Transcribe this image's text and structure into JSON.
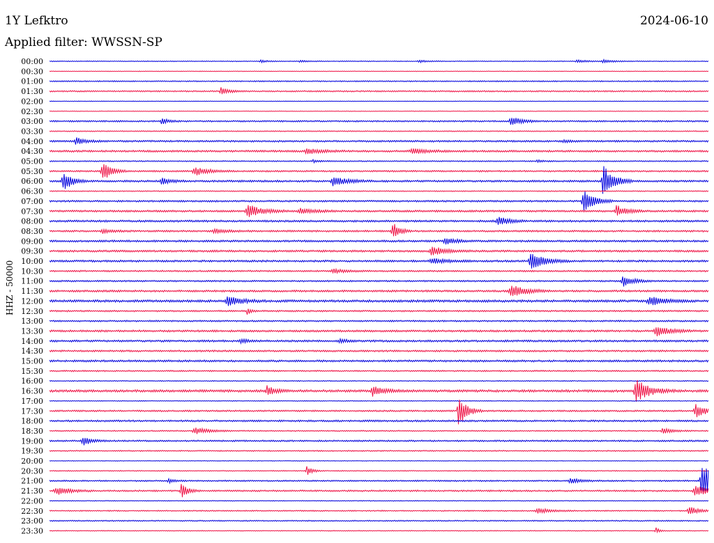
{
  "header": {
    "station": "1Y Lefktro",
    "date": "2024-06-10",
    "filter": "Applied filter: WWSSN-SP"
  },
  "chart_data": {
    "type": "line",
    "title": "1Y Lefktro",
    "date": "2024-06-10",
    "filter": "WWSSN-SP",
    "ylabel": "HHZ - 50000",
    "rows": [
      "00:00",
      "00:30",
      "01:00",
      "01:30",
      "02:00",
      "02:30",
      "03:00",
      "03:30",
      "04:00",
      "04:30",
      "05:00",
      "05:30",
      "06:00",
      "06:30",
      "07:00",
      "07:30",
      "08:00",
      "08:30",
      "09:00",
      "09:30",
      "10:00",
      "10:30",
      "11:00",
      "11:30",
      "12:00",
      "12:30",
      "13:00",
      "13:30",
      "14:00",
      "14:30",
      "15:00",
      "15:30",
      "16:00",
      "16:30",
      "17:00",
      "17:30",
      "18:00",
      "18:30",
      "19:00",
      "19:30",
      "20:00",
      "20:30",
      "21:00",
      "21:30",
      "22:00",
      "22:30",
      "23:00",
      "23:30"
    ],
    "colors": [
      "#0000dd",
      "#ee1144"
    ],
    "noise": [
      0.4,
      0.3,
      0.6,
      0.7,
      0.3,
      0.3,
      0.8,
      0.5,
      0.9,
      1.0,
      0.6,
      0.8,
      1.0,
      0.5,
      0.9,
      1.0,
      1.0,
      0.9,
      1.0,
      1.0,
      1.0,
      0.8,
      0.8,
      1.0,
      1.2,
      0.8,
      0.8,
      1.0,
      1.0,
      0.9,
      1.0,
      0.7,
      0.5,
      1.2,
      0.4,
      0.8,
      0.9,
      0.6,
      0.8,
      0.6,
      0.3,
      0.5,
      0.7,
      0.8,
      0.4,
      0.6,
      0.6,
      0.4
    ],
    "events": [
      {
        "row": 0,
        "t": 0.32,
        "a": 2,
        "w": 0.01
      },
      {
        "row": 0,
        "t": 0.38,
        "a": 2,
        "w": 0.01
      },
      {
        "row": 0,
        "t": 0.56,
        "a": 2,
        "w": 0.012
      },
      {
        "row": 0,
        "t": 0.8,
        "a": 2,
        "w": 0.015
      },
      {
        "row": 0,
        "t": 0.84,
        "a": 2.5,
        "w": 0.015
      },
      {
        "row": 3,
        "t": 0.26,
        "a": 5,
        "w": 0.012
      },
      {
        "row": 6,
        "t": 0.17,
        "a": 4,
        "w": 0.01
      },
      {
        "row": 6,
        "t": 0.7,
        "a": 7,
        "w": 0.015
      },
      {
        "row": 8,
        "t": 0.04,
        "a": 5,
        "w": 0.015
      },
      {
        "row": 8,
        "t": 0.78,
        "a": 2,
        "w": 0.01
      },
      {
        "row": 9,
        "t": 0.39,
        "a": 4,
        "w": 0.02
      },
      {
        "row": 9,
        "t": 0.55,
        "a": 4,
        "w": 0.02
      },
      {
        "row": 10,
        "t": 0.4,
        "a": 2,
        "w": 0.01
      },
      {
        "row": 10,
        "t": 0.74,
        "a": 2,
        "w": 0.01
      },
      {
        "row": 11,
        "t": 0.08,
        "a": 16,
        "w": 0.012
      },
      {
        "row": 11,
        "t": 0.22,
        "a": 6,
        "w": 0.02
      },
      {
        "row": 12,
        "t": 0.02,
        "a": 16,
        "w": 0.012
      },
      {
        "row": 12,
        "t": 0.17,
        "a": 5,
        "w": 0.012
      },
      {
        "row": 12,
        "t": 0.43,
        "a": 7,
        "w": 0.02
      },
      {
        "row": 12,
        "t": 0.84,
        "a": 24,
        "w": 0.015
      },
      {
        "row": 14,
        "t": 0.81,
        "a": 18,
        "w": 0.015
      },
      {
        "row": 15,
        "t": 0.3,
        "a": 10,
        "w": 0.02
      },
      {
        "row": 15,
        "t": 0.38,
        "a": 4,
        "w": 0.02
      },
      {
        "row": 15,
        "t": 0.86,
        "a": 8,
        "w": 0.015
      },
      {
        "row": 16,
        "t": 0.68,
        "a": 7,
        "w": 0.015
      },
      {
        "row": 17,
        "t": 0.08,
        "a": 3,
        "w": 0.015
      },
      {
        "row": 17,
        "t": 0.25,
        "a": 3,
        "w": 0.02
      },
      {
        "row": 17,
        "t": 0.52,
        "a": 14,
        "w": 0.01
      },
      {
        "row": 18,
        "t": 0.6,
        "a": 5,
        "w": 0.015
      },
      {
        "row": 19,
        "t": 0.58,
        "a": 7,
        "w": 0.02
      },
      {
        "row": 20,
        "t": 0.58,
        "a": 4,
        "w": 0.02
      },
      {
        "row": 20,
        "t": 0.73,
        "a": 12,
        "w": 0.02
      },
      {
        "row": 21,
        "t": 0.43,
        "a": 3,
        "w": 0.02
      },
      {
        "row": 22,
        "t": 0.87,
        "a": 8,
        "w": 0.015
      },
      {
        "row": 23,
        "t": 0.7,
        "a": 10,
        "w": 0.02
      },
      {
        "row": 24,
        "t": 0.27,
        "a": 7,
        "w": 0.02
      },
      {
        "row": 24,
        "t": 0.91,
        "a": 7,
        "w": 0.02
      },
      {
        "row": 25,
        "t": 0.3,
        "a": 6,
        "w": 0.005
      },
      {
        "row": 27,
        "t": 0.92,
        "a": 8,
        "w": 0.02
      },
      {
        "row": 28,
        "t": 0.29,
        "a": 3,
        "w": 0.01
      },
      {
        "row": 28,
        "t": 0.44,
        "a": 3,
        "w": 0.01
      },
      {
        "row": 33,
        "t": 0.33,
        "a": 7,
        "w": 0.012
      },
      {
        "row": 33,
        "t": 0.49,
        "a": 8,
        "w": 0.015
      },
      {
        "row": 33,
        "t": 0.89,
        "a": 16,
        "w": 0.02
      },
      {
        "row": 35,
        "t": 0.62,
        "a": 24,
        "w": 0.012
      },
      {
        "row": 35,
        "t": 0.98,
        "a": 10,
        "w": 0.015
      },
      {
        "row": 37,
        "t": 0.22,
        "a": 5,
        "w": 0.02
      },
      {
        "row": 37,
        "t": 0.93,
        "a": 4,
        "w": 0.015
      },
      {
        "row": 38,
        "t": 0.05,
        "a": 7,
        "w": 0.012
      },
      {
        "row": 41,
        "t": 0.39,
        "a": 7,
        "w": 0.008
      },
      {
        "row": 42,
        "t": 0.18,
        "a": 3,
        "w": 0.01
      },
      {
        "row": 42,
        "t": 0.79,
        "a": 4,
        "w": 0.015
      },
      {
        "row": 42,
        "t": 0.99,
        "a": 30,
        "w": 0.015
      },
      {
        "row": 43,
        "t": 0.01,
        "a": 6,
        "w": 0.02
      },
      {
        "row": 43,
        "t": 0.2,
        "a": 10,
        "w": 0.01
      },
      {
        "row": 43,
        "t": 0.98,
        "a": 8,
        "w": 0.02
      },
      {
        "row": 45,
        "t": 0.74,
        "a": 4,
        "w": 0.02
      },
      {
        "row": 45,
        "t": 0.97,
        "a": 6,
        "w": 0.015
      },
      {
        "row": 47,
        "t": 0.92,
        "a": 5,
        "w": 0.005
      }
    ]
  }
}
